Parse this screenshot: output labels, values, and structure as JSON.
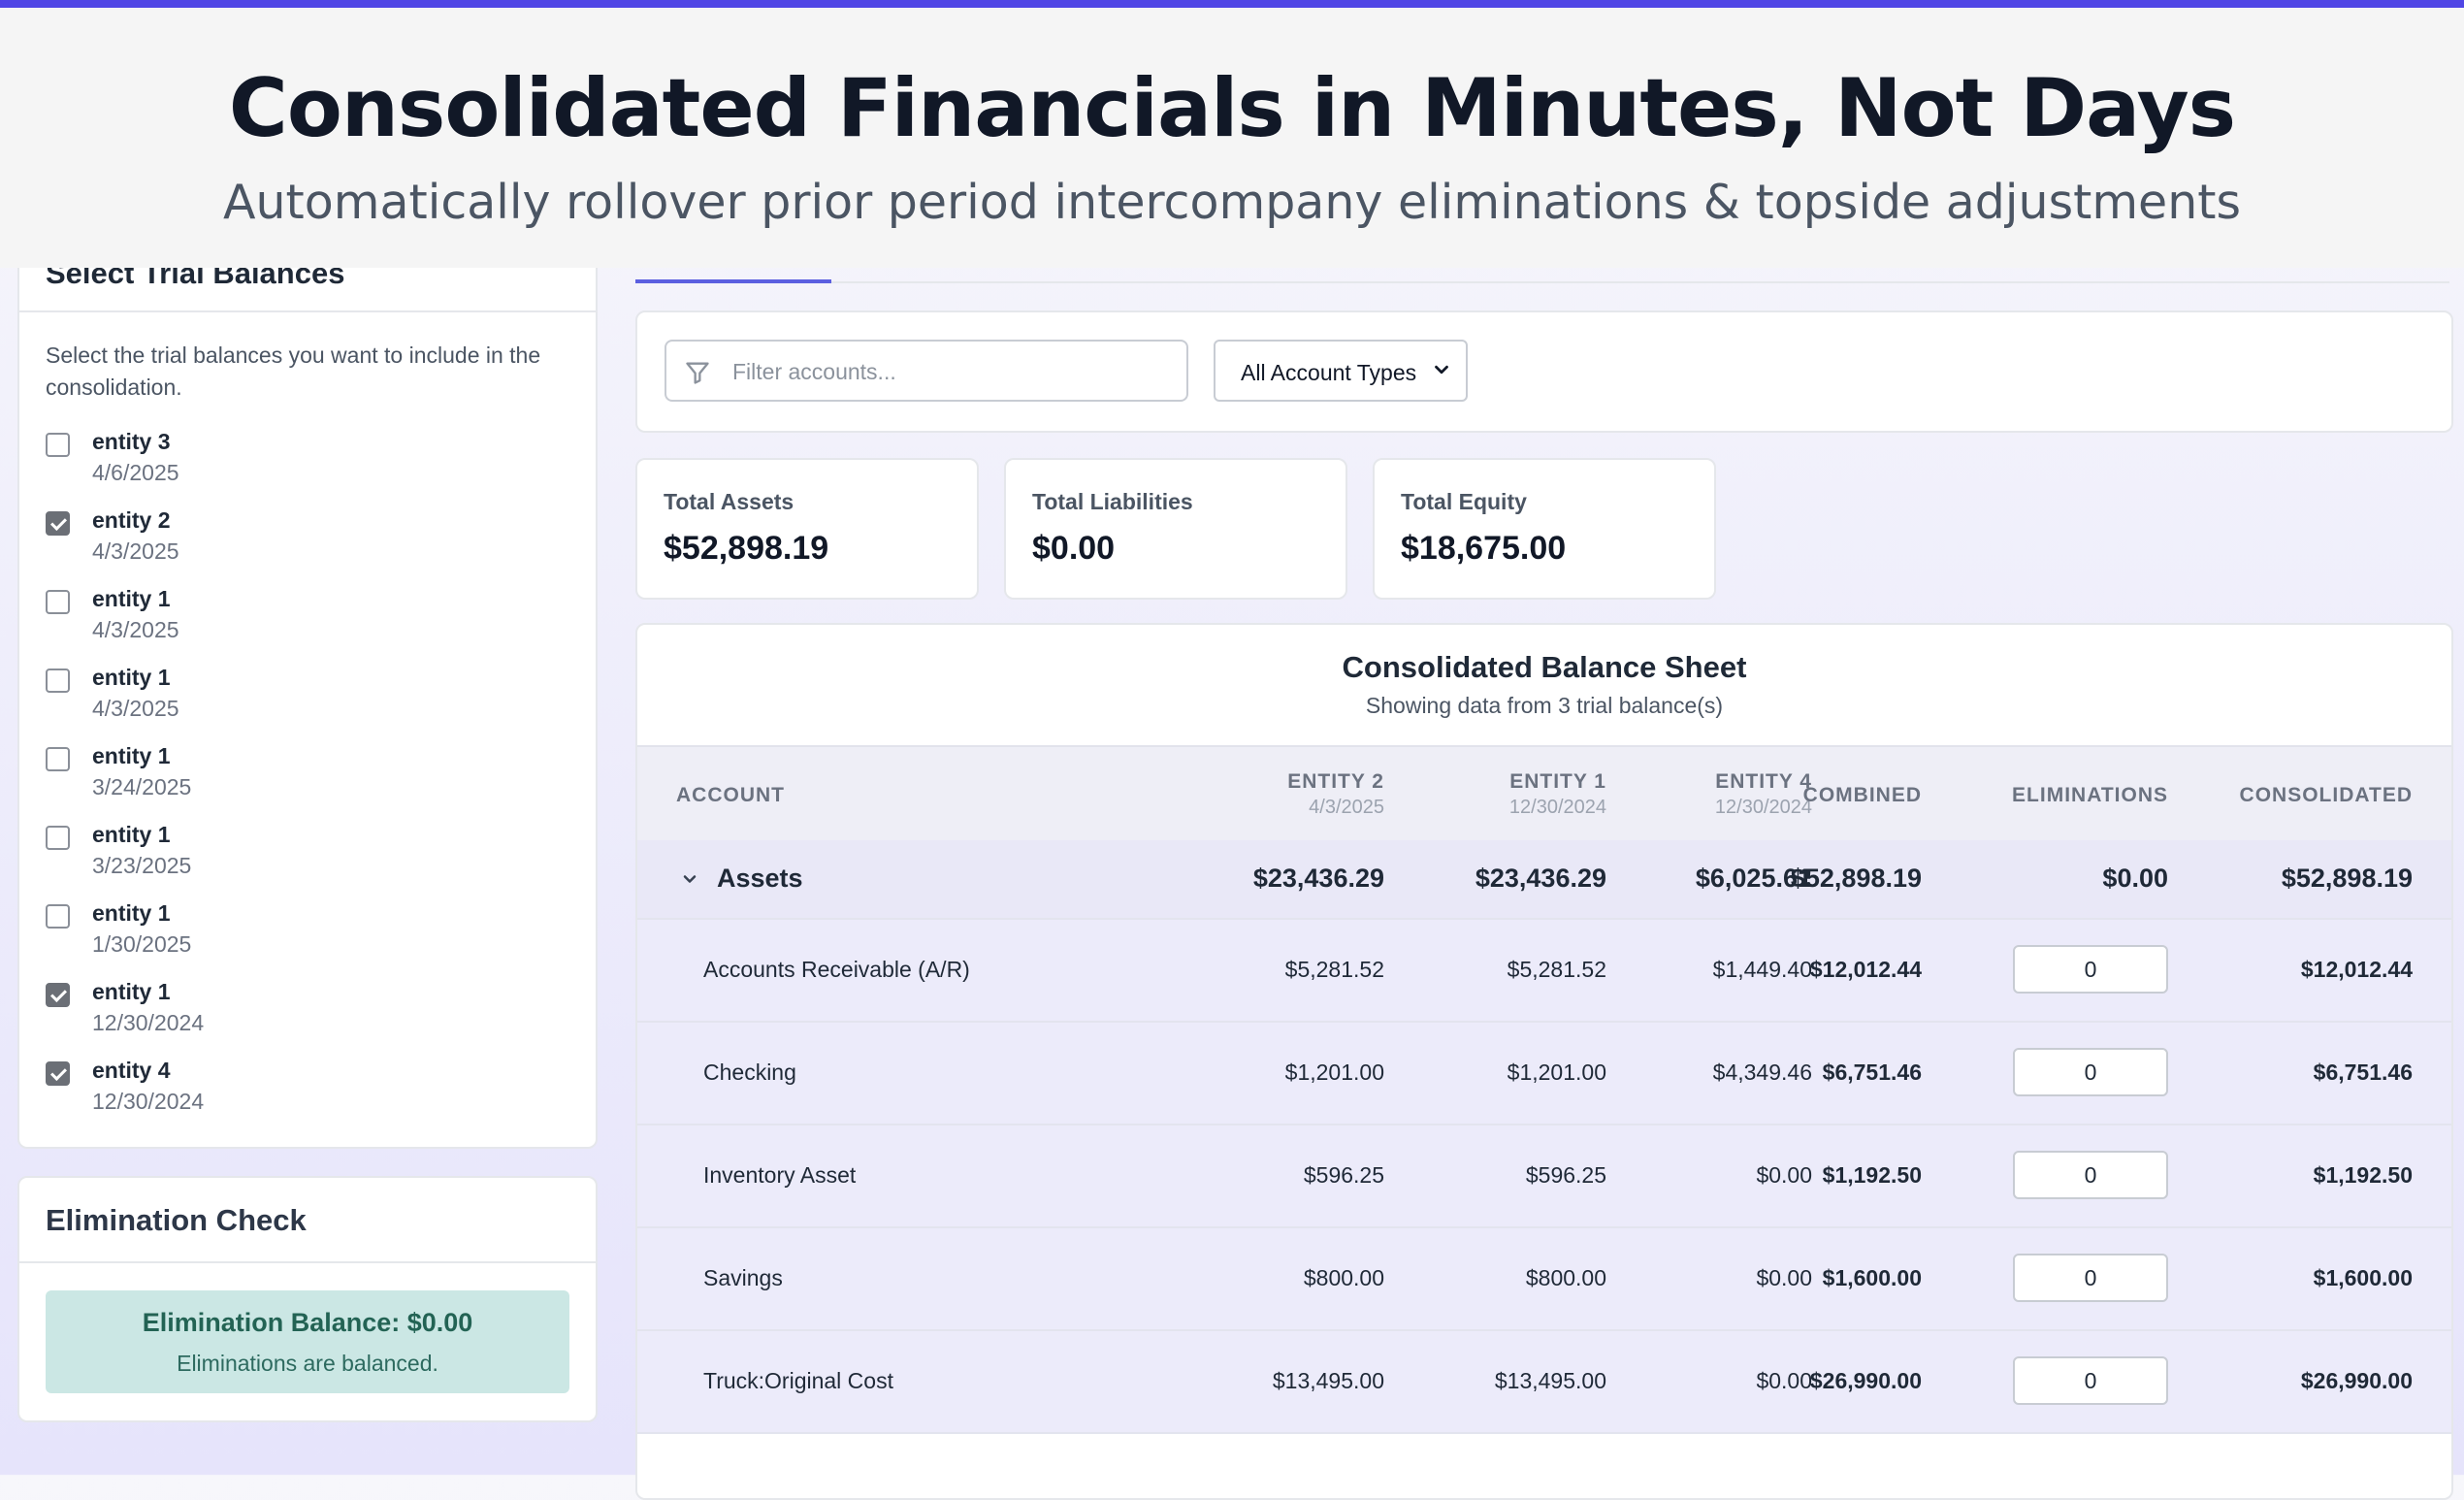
{
  "hero": {
    "title": "Consolidated Financials in Minutes, Not Days",
    "subtitle": "Automatically rollover prior period intercompany eliminations & topside adjustments",
    "accent_color": "#5046e5"
  },
  "trial_panel": {
    "title": "Select Trial Balances",
    "description": "Select the trial balances you want to include in the consolidation.",
    "items": [
      {
        "name": "entity 3",
        "date": "4/6/2025",
        "checked": false
      },
      {
        "name": "entity 2",
        "date": "4/3/2025",
        "checked": true
      },
      {
        "name": "entity 1",
        "date": "4/3/2025",
        "checked": false
      },
      {
        "name": "entity 1",
        "date": "4/3/2025",
        "checked": false
      },
      {
        "name": "entity 1",
        "date": "3/24/2025",
        "checked": false
      },
      {
        "name": "entity 1",
        "date": "3/23/2025",
        "checked": false
      },
      {
        "name": "entity 1",
        "date": "1/30/2025",
        "checked": false
      },
      {
        "name": "entity 1",
        "date": "12/30/2024",
        "checked": true
      },
      {
        "name": "entity 4",
        "date": "12/30/2024",
        "checked": true
      }
    ]
  },
  "elimination_check": {
    "title": "Elimination Check",
    "balance": "Elimination Balance: $0.00",
    "message": "Eliminations are balanced.",
    "status_color": "#cbe7e4"
  },
  "filters": {
    "search_placeholder": "Filter accounts...",
    "account_type": "All Account Types",
    "search_icon": "filter-funnel-icon"
  },
  "stats": {
    "assets_label": "Total Assets",
    "assets_value": "$52,898.19",
    "liabilities_label": "Total Liabilities",
    "liabilities_value": "$0.00",
    "equity_label": "Total Equity",
    "equity_value": "$18,675.00"
  },
  "table": {
    "title": "Consolidated Balance Sheet",
    "subtitle": "Showing data from 3 trial balance(s)",
    "headers": {
      "account": "Account",
      "entity2": "Entity 2",
      "entity2_date": "4/3/2025",
      "entity1": "Entity 1",
      "entity1_date": "12/30/2024",
      "entity4": "Entity 4",
      "entity4_date": "12/30/2024",
      "combined": "Combined",
      "eliminations": "Eliminations",
      "consolidated": "Consolidated"
    },
    "group": {
      "name": "Assets",
      "e2": "$23,436.29",
      "e1": "$23,436.29",
      "e4": "$6,025.61",
      "combined": "$52,898.19",
      "elim": "$0.00",
      "consolidated": "$52,898.19"
    },
    "rows": [
      {
        "account": "Accounts Receivable (A/R)",
        "e2": "$5,281.52",
        "e1": "$5,281.52",
        "e4": "$1,449.40",
        "combined": "$12,012.44",
        "elim": "0",
        "consolidated": "$12,012.44"
      },
      {
        "account": "Checking",
        "e2": "$1,201.00",
        "e1": "$1,201.00",
        "e4": "$4,349.46",
        "combined": "$6,751.46",
        "elim": "0",
        "consolidated": "$6,751.46"
      },
      {
        "account": "Inventory Asset",
        "e2": "$596.25",
        "e1": "$596.25",
        "e4": "$0.00",
        "combined": "$1,192.50",
        "elim": "0",
        "consolidated": "$1,192.50"
      },
      {
        "account": "Savings",
        "e2": "$800.00",
        "e1": "$800.00",
        "e4": "$0.00",
        "combined": "$1,600.00",
        "elim": "0",
        "consolidated": "$1,600.00"
      },
      {
        "account": "Truck:Original Cost",
        "e2": "$13,495.00",
        "e1": "$13,495.00",
        "e4": "$0.00",
        "combined": "$26,990.00",
        "elim": "0",
        "consolidated": "$26,990.00"
      }
    ]
  }
}
